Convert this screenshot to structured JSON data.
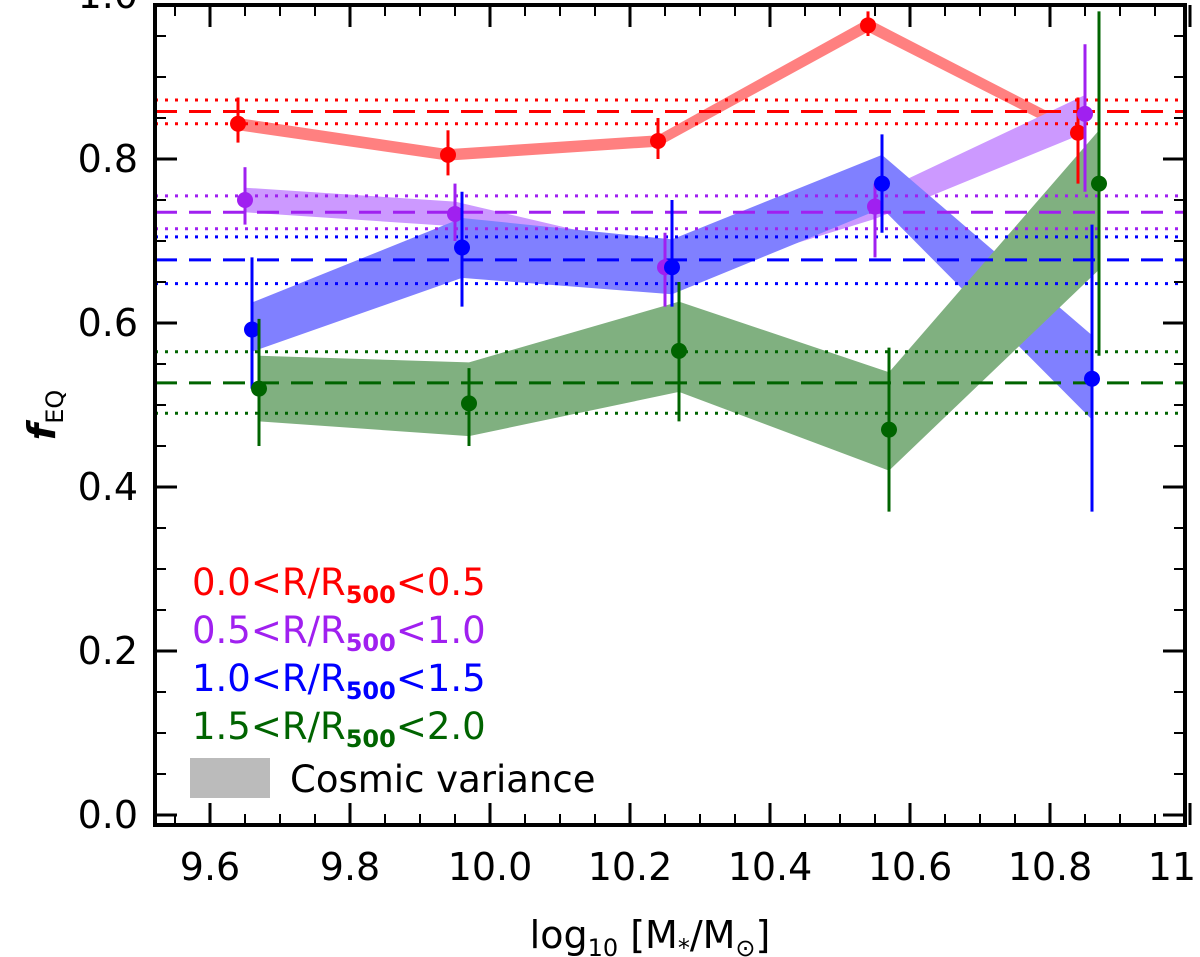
{
  "chart_data": {
    "type": "scatter",
    "title": "",
    "xlabel": {
      "prefix": "log",
      "sub": "10",
      "suffix": " [M",
      "star": "*",
      "mid": "/M",
      "sun": "⊙",
      "end": "]"
    },
    "ylabel": {
      "main": "f",
      "sub": "EQ"
    },
    "xlim": [
      9.5,
      11.0
    ],
    "ylim": [
      0.0,
      1.0
    ],
    "xticks": [
      9.6,
      9.8,
      10.0,
      10.2,
      10.4,
      10.6,
      10.8,
      11.0
    ],
    "xtick_labels": [
      "9.6",
      "9.8",
      "10.0",
      "10.2",
      "10.4",
      "10.6",
      "10.8",
      "11.0"
    ],
    "yticks": [
      0.0,
      0.2,
      0.4,
      0.6,
      0.8,
      1.0
    ],
    "ytick_labels": [
      "0.0",
      "0.2",
      "0.4",
      "0.6",
      "0.8",
      "1.0"
    ],
    "legend_position": "bottom-left",
    "series": [
      {
        "name": "0.0<R/R500<0.5",
        "label_parts": [
          "0.0<R/R",
          "500",
          "<0.5"
        ],
        "color": "#ff0000",
        "band_color": "#ff8080",
        "x": [
          9.64,
          9.94,
          10.24,
          10.54,
          10.84
        ],
        "y": [
          0.843,
          0.805,
          0.822,
          0.963,
          0.832
        ],
        "yerr_low": [
          0.82,
          0.78,
          0.8,
          0.95,
          0.77
        ],
        "yerr_high": [
          0.875,
          0.835,
          0.85,
          0.98,
          0.875
        ],
        "band_low": [
          0.835,
          0.798,
          0.815,
          0.955,
          0.825
        ],
        "band_high": [
          0.85,
          0.812,
          0.829,
          0.971,
          0.839
        ],
        "mean": 0.858,
        "mean_low": 0.843,
        "mean_high": 0.872
      },
      {
        "name": "0.5<R/R500<1.0",
        "label_parts": [
          "0.5<R/R",
          "500",
          "<1.0"
        ],
        "color": "#a020f0",
        "band_color": "#cc99ff",
        "x": [
          9.65,
          9.95,
          10.25,
          10.55,
          10.85
        ],
        "y": [
          0.75,
          0.733,
          0.668,
          0.742,
          0.855
        ],
        "yerr_low": [
          0.72,
          0.7,
          0.62,
          0.68,
          0.76
        ],
        "yerr_high": [
          0.79,
          0.77,
          0.71,
          0.77,
          0.94
        ],
        "band_low": [
          0.735,
          0.718,
          0.648,
          0.727,
          0.832
        ],
        "band_high": [
          0.765,
          0.748,
          0.688,
          0.757,
          0.878
        ],
        "mean": 0.735,
        "mean_low": 0.715,
        "mean_high": 0.755
      },
      {
        "name": "1.0<R/R500<1.5",
        "label_parts": [
          "1.0<R/R",
          "500",
          "<1.5"
        ],
        "color": "#0000ff",
        "band_color": "#8080ff",
        "x": [
          9.66,
          9.96,
          10.26,
          10.56,
          10.86
        ],
        "y": [
          0.592,
          0.692,
          0.668,
          0.77,
          0.532
        ],
        "yerr_low": [
          0.52,
          0.62,
          0.62,
          0.71,
          0.37
        ],
        "yerr_high": [
          0.68,
          0.76,
          0.75,
          0.83,
          0.72
        ],
        "band_low": [
          0.565,
          0.655,
          0.635,
          0.74,
          0.482
        ],
        "band_high": [
          0.625,
          0.728,
          0.702,
          0.805,
          0.585
        ],
        "mean": 0.677,
        "mean_low": 0.648,
        "mean_high": 0.705
      },
      {
        "name": "1.5<R/R500<2.0",
        "label_parts": [
          "1.5<R/R",
          "500",
          "<2.0"
        ],
        "color": "#006400",
        "band_color": "#80b080",
        "x": [
          9.67,
          9.97,
          10.27,
          10.57,
          10.87
        ],
        "y": [
          0.52,
          0.502,
          0.566,
          0.47,
          0.77
        ],
        "yerr_low": [
          0.45,
          0.45,
          0.48,
          0.37,
          0.56
        ],
        "yerr_high": [
          0.605,
          0.545,
          0.65,
          0.57,
          0.98
        ],
        "band_low": [
          0.48,
          0.462,
          0.516,
          0.42,
          0.665
        ],
        "band_high": [
          0.56,
          0.552,
          0.626,
          0.54,
          0.835
        ],
        "mean": 0.527,
        "mean_low": 0.49,
        "mean_high": 0.565
      }
    ],
    "legend_extra": {
      "name": "Cosmic variance",
      "color": "#bbbbbb"
    }
  }
}
